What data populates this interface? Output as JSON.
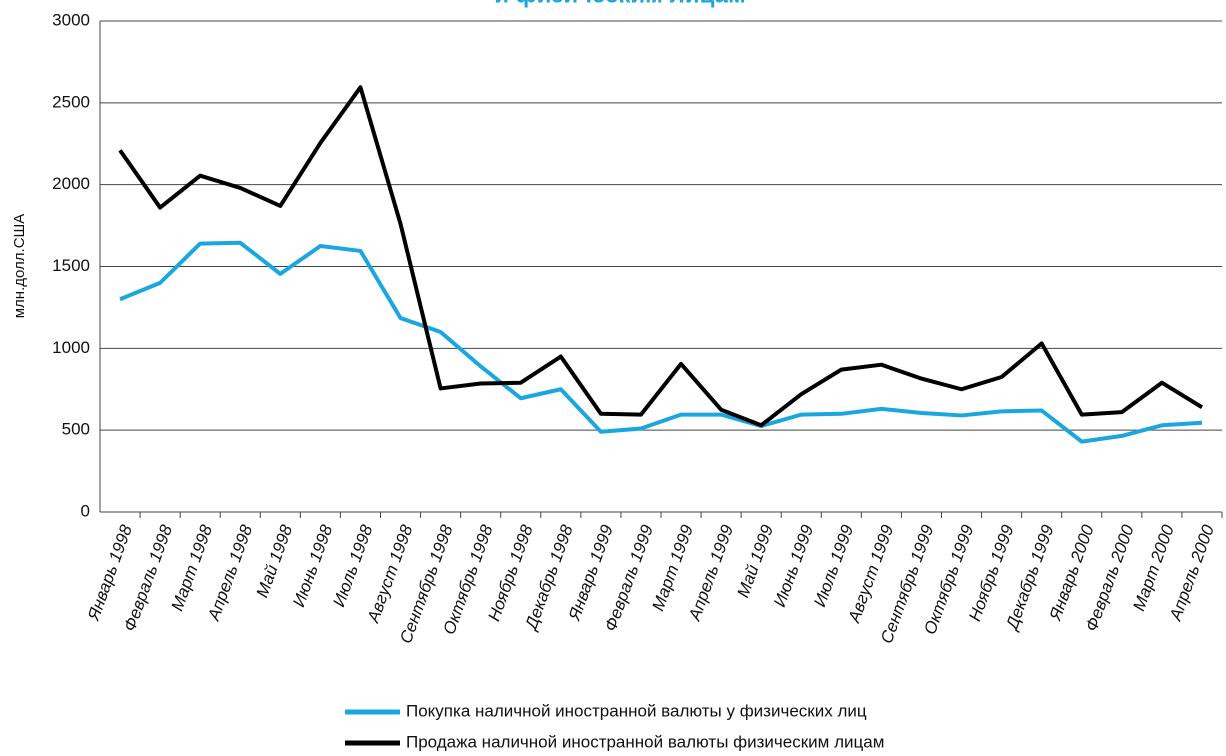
{
  "chart_data": {
    "type": "line",
    "title": "и физическим лицам",
    "y_label": "млн.долл.США",
    "categories": [
      "Январь 1998",
      "Февраль 1998",
      "Март 1998",
      "Апрель 1998",
      "Май 1998",
      "Июнь 1998",
      "Июль 1998",
      "Август 1998",
      "Сентябрь 1998",
      "Октябрь 1998",
      "Ноябрь 1998",
      "Декабрь 1998",
      "Январь 1999",
      "Февраль 1999",
      "Март 1999",
      "Апрель 1999",
      "Май 1999",
      "Июнь 1999",
      "Июль 1999",
      "Август 1999",
      "Сентябрь 1999",
      "Октябрь 1999",
      "Ноябрь 1999",
      "Декабрь 1999",
      "Январь 2000",
      "Февраль 2000",
      "Март 2000",
      "Апрель 2000"
    ],
    "series": [
      {
        "name": "Покупка наличной иностранной валюты у физических лиц",
        "color": "#1aa7e0",
        "values": [
          1300,
          1400,
          1640,
          1645,
          1455,
          1625,
          1595,
          1185,
          1100,
          890,
          695,
          750,
          490,
          510,
          595,
          595,
          525,
          595,
          600,
          630,
          605,
          590,
          615,
          620,
          430,
          465,
          530,
          545
        ]
      },
      {
        "name": "Продажа наличной иностранной валюты физическим лицам",
        "color": "#000000",
        "values": [
          2210,
          1860,
          2055,
          1980,
          1870,
          2255,
          2595,
          1760,
          755,
          785,
          790,
          950,
          600,
          595,
          905,
          625,
          530,
          720,
          870,
          900,
          815,
          750,
          825,
          1030,
          595,
          610,
          790,
          640
        ]
      }
    ],
    "ylim": [
      0,
      3000
    ],
    "yticks": [
      0,
      500,
      1000,
      1500,
      2000,
      2500,
      3000
    ],
    "grid": true
  }
}
